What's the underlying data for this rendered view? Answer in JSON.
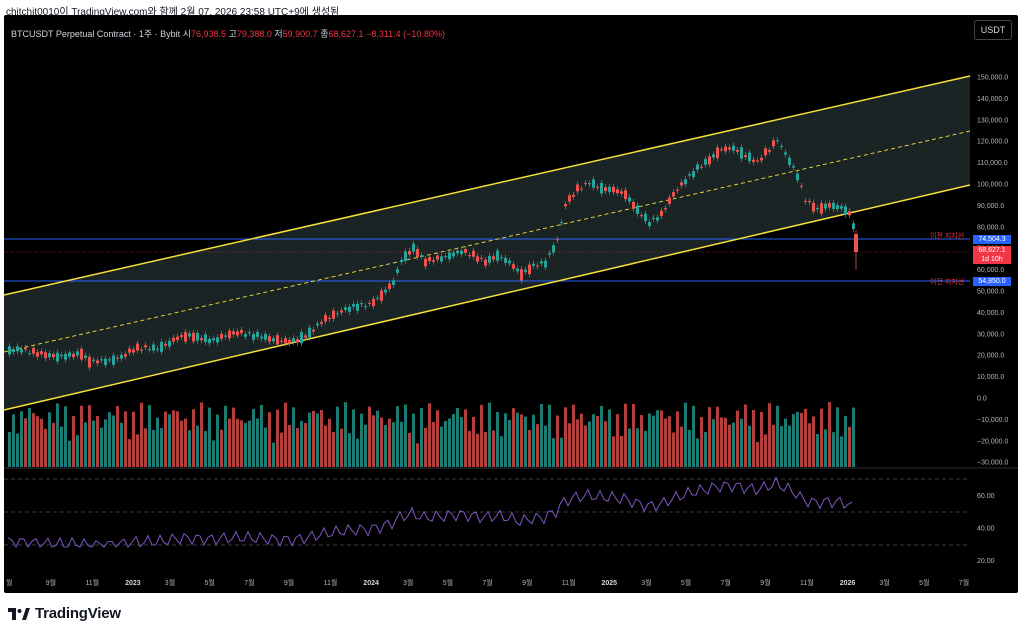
{
  "watermark": "chitchit0010이 TradingView.com와 함께 2월 07, 2026 23:58 UTC+9에 생성됨",
  "symbol_line": {
    "name": "BTCUSDT Perpetual Contract · 1주 · Bybit",
    "open_label": "시",
    "open": "76,938.5",
    "high_label": "고",
    "high": "79,388.0",
    "low_label": "저",
    "low": "59,900.7",
    "close_label": "종",
    "close": "68,627.1",
    "change": "−8,311.4 (−10.80%)"
  },
  "currency_button": "USDT",
  "price_axis": [
    "150,000.0",
    "140,000.0",
    "130,000.0",
    "120,000.0",
    "110,000.0",
    "100,000.0",
    "90,000.0",
    "80,000.0",
    "70,000.0",
    "60,000.0",
    "50,000.0",
    "40,000.0",
    "30,000.0",
    "20,000.0",
    "10,000.0",
    "0.0",
    "−10,000.0",
    "−20,000.0",
    "−30,000.0"
  ],
  "rsi_axis": [
    "60.00",
    "40.00",
    "20.00"
  ],
  "time_axis": [
    {
      "t": "월",
      "bold": false
    },
    {
      "t": "9월",
      "bold": false
    },
    {
      "t": "11월",
      "bold": false
    },
    {
      "t": "2023",
      "bold": true
    },
    {
      "t": "3월",
      "bold": false
    },
    {
      "t": "5월",
      "bold": false
    },
    {
      "t": "7월",
      "bold": false
    },
    {
      "t": "9월",
      "bold": false
    },
    {
      "t": "11월",
      "bold": false
    },
    {
      "t": "2024",
      "bold": true
    },
    {
      "t": "3월",
      "bold": false
    },
    {
      "t": "5월",
      "bold": false
    },
    {
      "t": "7월",
      "bold": false
    },
    {
      "t": "9월",
      "bold": false
    },
    {
      "t": "11월",
      "bold": false
    },
    {
      "t": "2025",
      "bold": true
    },
    {
      "t": "3월",
      "bold": false
    },
    {
      "t": "5월",
      "bold": false
    },
    {
      "t": "7월",
      "bold": false
    },
    {
      "t": "9월",
      "bold": false
    },
    {
      "t": "11월",
      "bold": false
    },
    {
      "t": "2026",
      "bold": true
    },
    {
      "t": "3월",
      "bold": false
    },
    {
      "t": "5월",
      "bold": false
    },
    {
      "t": "7월",
      "bold": false
    }
  ],
  "support_labels": {
    "upper": "이전 지지선",
    "lower": "이전 지지선"
  },
  "price_tags": {
    "upper_line": "74,504.3",
    "last_price": "68,627.1",
    "countdown": "1d 10h",
    "lower_line": "54,850.0"
  },
  "brand": "TradingView",
  "colors": {
    "up": "#26a69a",
    "down": "#ef5350",
    "channel": "#f7e03b",
    "support_line": "#2962ff",
    "rsi": "#7e57c2",
    "last_price": "#f23645"
  }
}
